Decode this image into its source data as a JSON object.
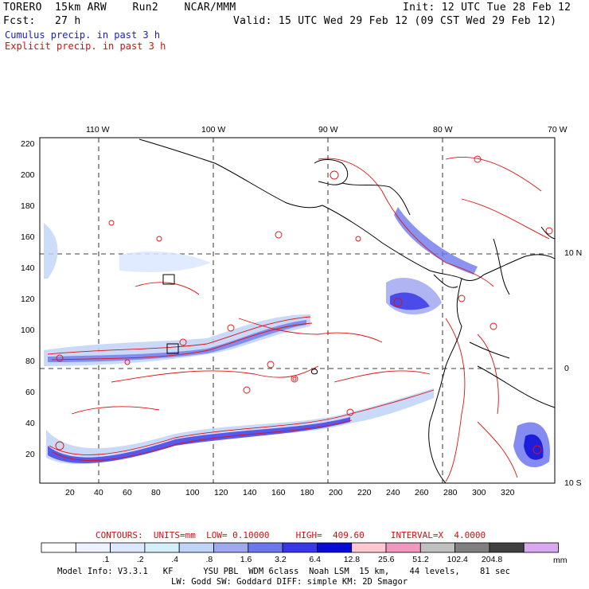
{
  "header": {
    "model": "TORERO  15km ARW    Run2    NCAR/MMM",
    "init": "Init: 12 UTC Tue 28 Feb 12",
    "fcst": "Fcst:   27 h",
    "valid": "Valid: 15 UTC Wed 29 Feb 12 (09 CST Wed 29 Feb 12)"
  },
  "legend": {
    "cumulus": "Cumulus precip. in past 3 h",
    "explicit": "Explicit precip. in past 3 h"
  },
  "longitudes": [
    "110 W",
    "100 W",
    "90 W",
    "80 W",
    "70 W"
  ],
  "latitudes": [
    "10 N",
    "0",
    "10 S"
  ],
  "y_ticks": [
    "220",
    "200",
    "180",
    "160",
    "140",
    "120",
    "100",
    "80",
    "60",
    "40",
    "20"
  ],
  "x_ticks": [
    "20",
    "40",
    "60",
    "80",
    "100",
    "120",
    "140",
    "160",
    "180",
    "200",
    "220",
    "240",
    "260",
    "280",
    "300",
    "320"
  ],
  "contours": "CONTOURS:  UNITS=mm  LOW= 0.10000     HIGH=  409.60     INTERVAL=X  4.0000",
  "colorbar": {
    "labels": [
      ".1",
      ".2",
      ".4",
      ".8",
      "1.6",
      "3.2",
      "6.4",
      "12.8",
      "25.6",
      "51.2",
      "102.4",
      "204.8"
    ],
    "units": "mm",
    "colors": [
      "#ffffff",
      "#eef4ff",
      "#dce8ff",
      "#d5f0f8",
      "#c0d4f8",
      "#a0a8f0",
      "#6e78ee",
      "#3838e8",
      "#0a0ad8",
      "#ffc8d2",
      "#f098c0",
      "#c0c0c0",
      "#808080",
      "#404040",
      "#d8a8f0"
    ]
  },
  "model_info": "Model Info: V3.3.1   KF      YSU PBL  WDM 6class  Noah LSM  15 km,    44 levels,    81 sec",
  "model_info2": "LW: Godd SW: Goddard DIFF: simple KM: 2D Smagor"
}
